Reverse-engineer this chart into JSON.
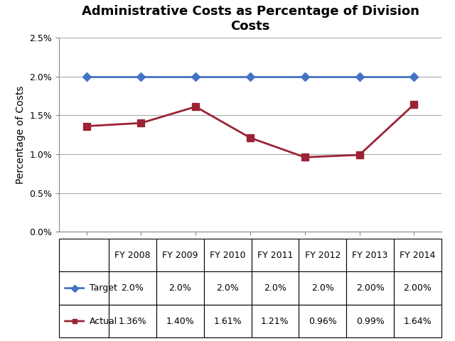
{
  "title": "Administrative Costs as Percentage of Division\nCosts",
  "ylabel": "Percentage of Costs",
  "categories": [
    "FY 2008",
    "FY 2009",
    "FY 2010",
    "FY 2011",
    "FY 2012",
    "FY 2013",
    "FY 2014"
  ],
  "target_values": [
    0.02,
    0.02,
    0.02,
    0.02,
    0.02,
    0.02,
    0.02
  ],
  "actual_values": [
    0.0136,
    0.014,
    0.0161,
    0.0121,
    0.0096,
    0.0099,
    0.0164
  ],
  "target_labels": [
    "2.0%",
    "2.0%",
    "2.0%",
    "2.0%",
    "2.0%",
    "2.00%",
    "2.00%"
  ],
  "actual_labels": [
    "1.36%",
    "1.40%",
    "1.61%",
    "1.21%",
    "0.96%",
    "0.99%",
    "1.64%"
  ],
  "target_color": "#4472C4",
  "actual_color": "#9B2335",
  "ylim": [
    0.0,
    0.025
  ],
  "yticks": [
    0.0,
    0.005,
    0.01,
    0.015,
    0.02,
    0.025
  ],
  "ytick_labels": [
    "0.0%",
    "0.5%",
    "1.0%",
    "1.5%",
    "2.0%",
    "2.5%"
  ],
  "background_color": "#FFFFFF",
  "grid_color": "#AAAAAA",
  "title_fontsize": 13,
  "axis_label_fontsize": 10,
  "tick_fontsize": 9,
  "table_fontsize": 9
}
